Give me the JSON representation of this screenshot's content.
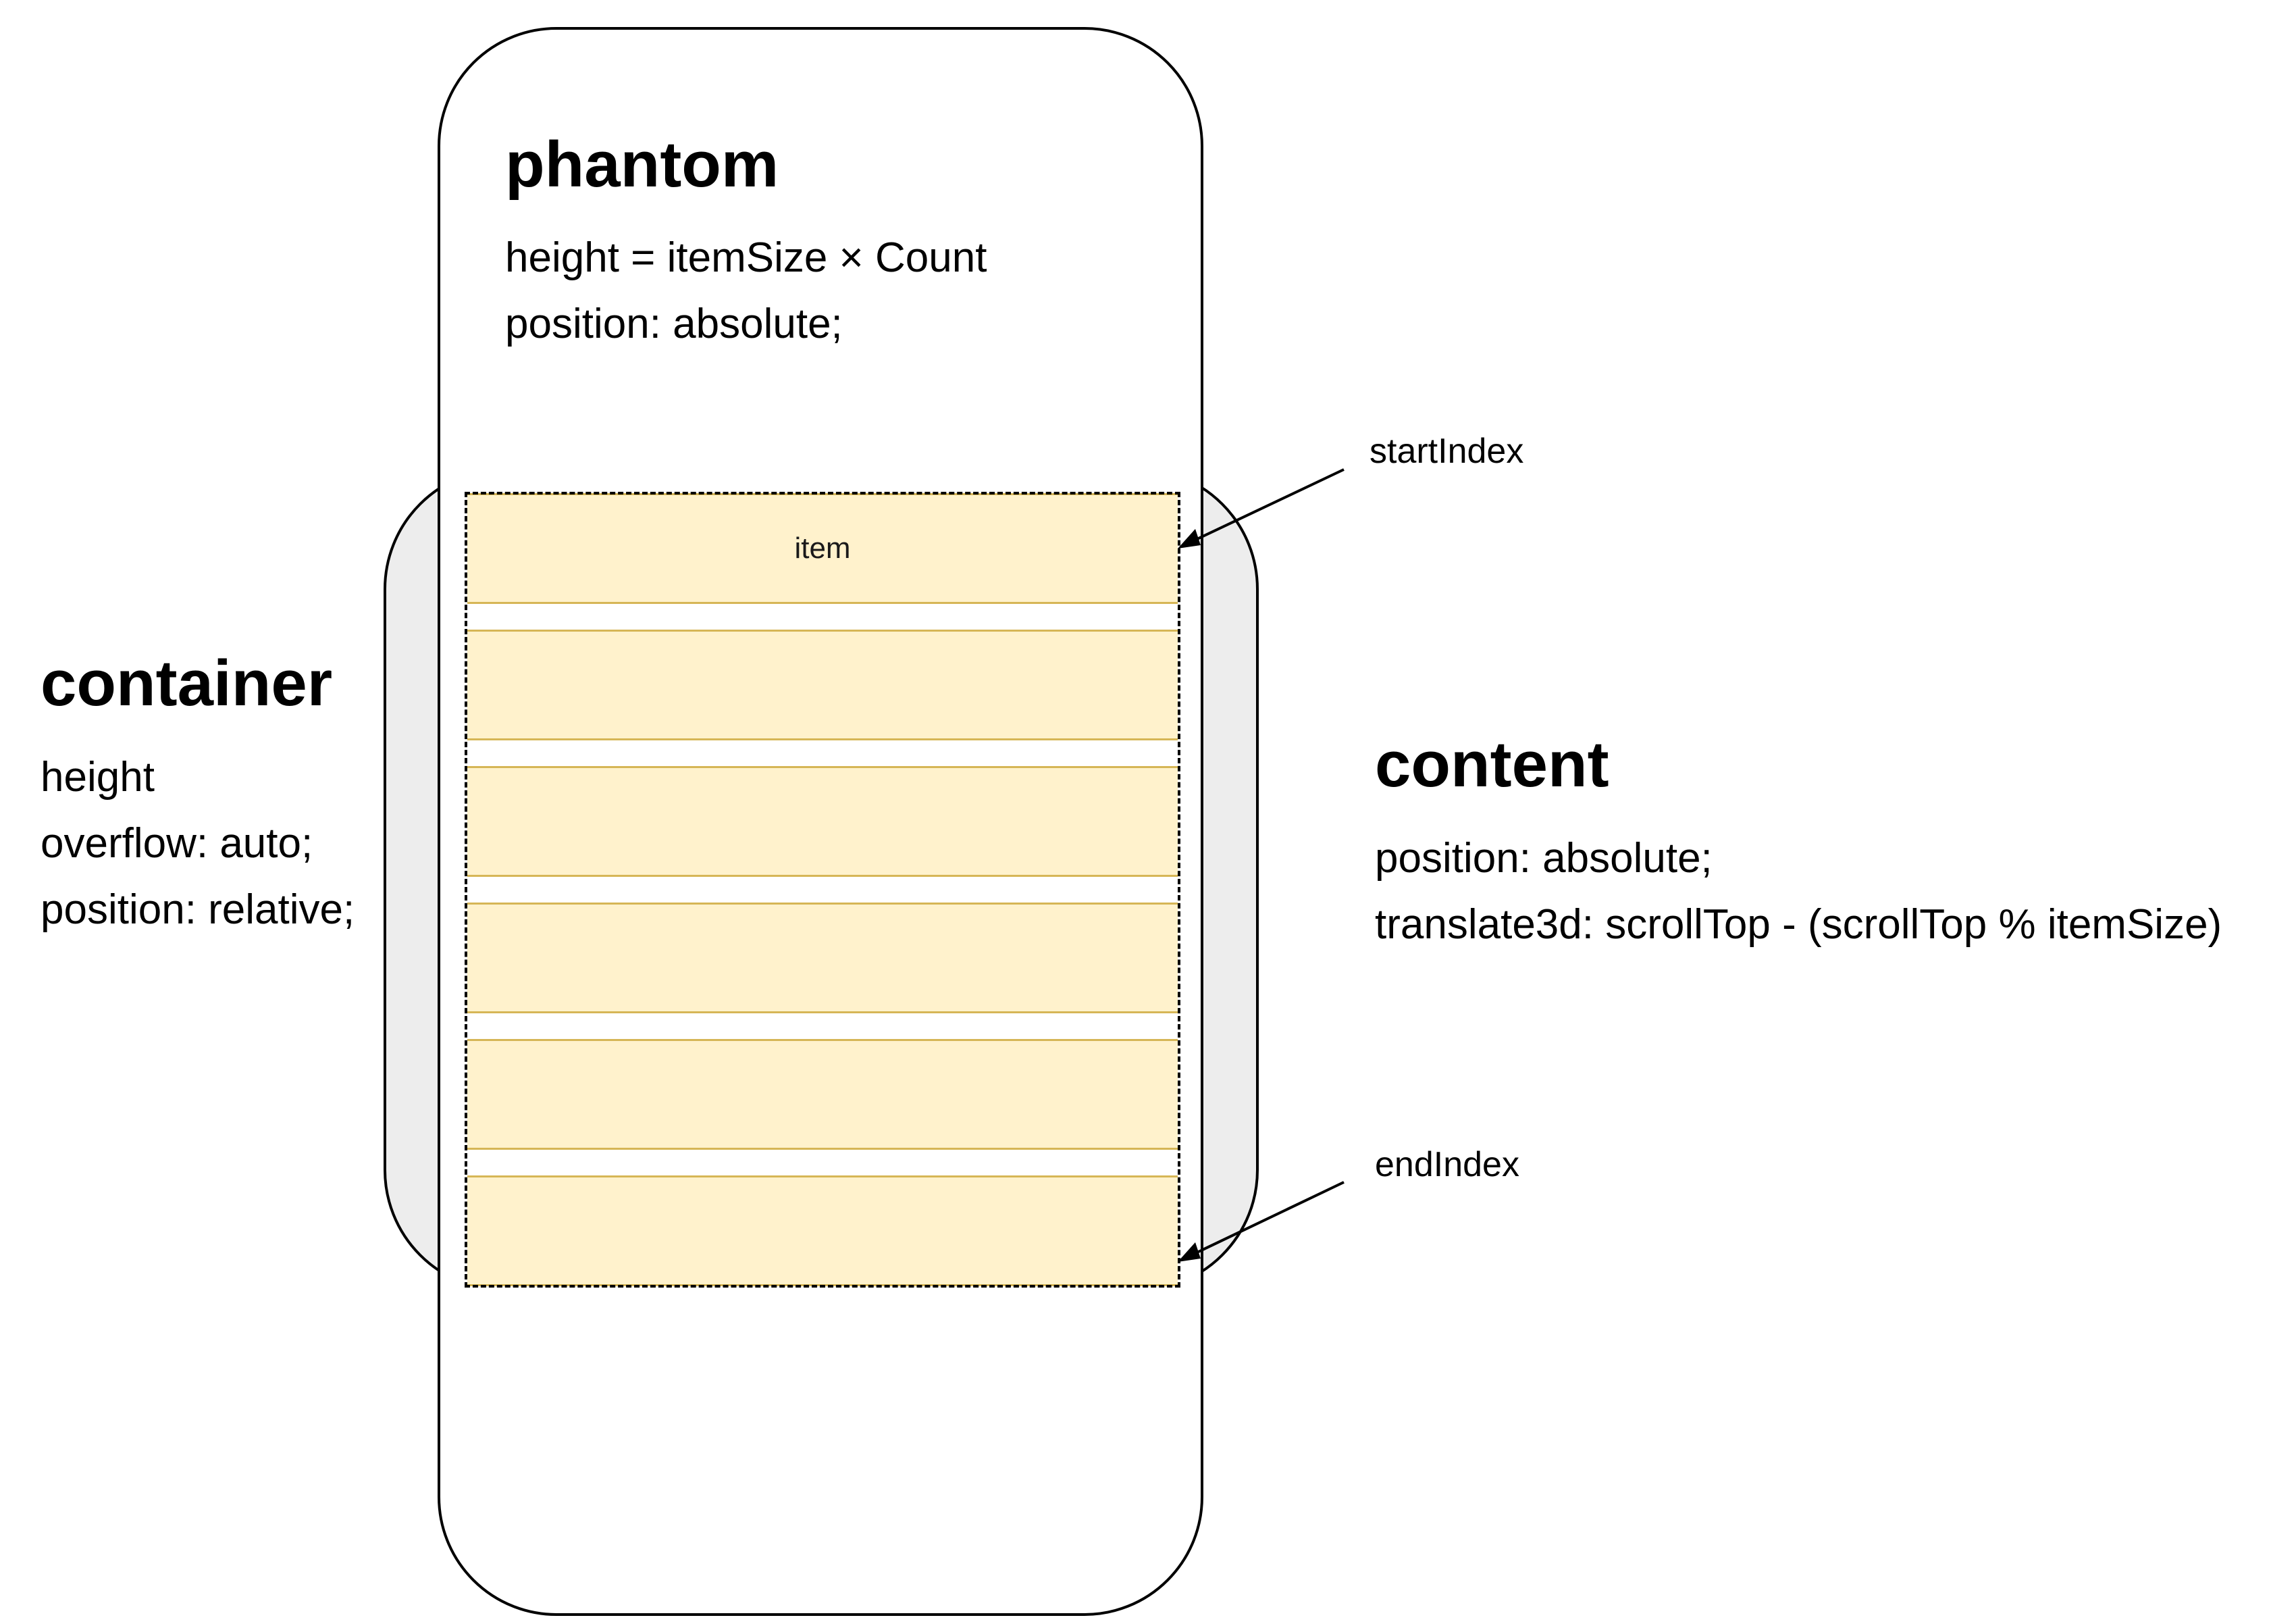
{
  "phantom": {
    "title": "phantom",
    "lines": [
      "height = itemSize × Count",
      "position: absolute;"
    ]
  },
  "container": {
    "title": "container",
    "lines": [
      "height",
      "overflow: auto;",
      "position: relative;"
    ]
  },
  "content": {
    "title": "content",
    "lines": [
      "position: absolute;",
      "translate3d: scrollTop - (scrollTop % itemSize)"
    ]
  },
  "items": [
    {
      "label": "item"
    },
    {
      "label": ""
    },
    {
      "label": ""
    },
    {
      "label": ""
    },
    {
      "label": ""
    },
    {
      "label": ""
    }
  ],
  "arrows": {
    "start_label": "startIndex",
    "end_label": "endIndex"
  },
  "colors": {
    "container_fill": "#ededed",
    "item_fill": "#fff2cc",
    "item_border": "#d6b656",
    "outline": "#000000"
  }
}
